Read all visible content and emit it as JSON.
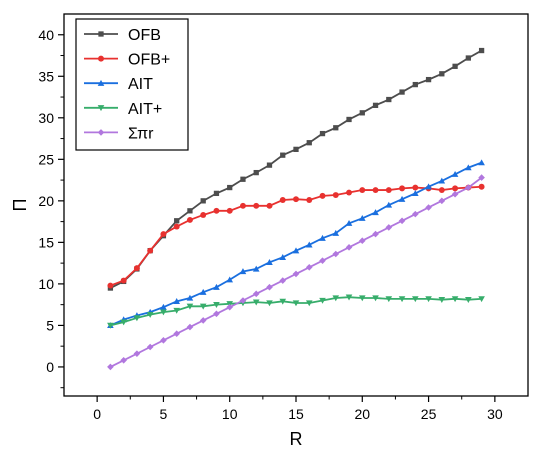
{
  "chart_data": {
    "type": "line",
    "title": "",
    "xlabel": "R",
    "ylabel": "Π",
    "xlim": [
      -2.5,
      32.5
    ],
    "ylim": [
      -3.5,
      42.5
    ],
    "xticks": [
      0,
      5,
      10,
      15,
      20,
      25,
      30
    ],
    "yticks": [
      0,
      5,
      10,
      15,
      20,
      25,
      30,
      35,
      40
    ],
    "grid": false,
    "legend_position": "top-left",
    "x": [
      1,
      2,
      3,
      4,
      5,
      6,
      7,
      8,
      9,
      10,
      11,
      12,
      13,
      14,
      15,
      16,
      17,
      18,
      19,
      20,
      21,
      22,
      23,
      24,
      25,
      26,
      27,
      28,
      29
    ],
    "series": [
      {
        "name": "OFB",
        "color": "#4d4d4d",
        "marker": "square",
        "values": [
          9.5,
          10.3,
          11.8,
          14.0,
          15.8,
          17.6,
          18.8,
          20.0,
          20.9,
          21.6,
          22.6,
          23.4,
          24.3,
          25.5,
          26.2,
          27.0,
          28.1,
          28.8,
          29.8,
          30.6,
          31.5,
          32.2,
          33.1,
          34.0,
          34.6,
          35.3,
          36.2,
          37.2,
          38.1
        ]
      },
      {
        "name": "OFB+",
        "color": "#e8312f",
        "marker": "circle",
        "values": [
          9.8,
          10.4,
          11.9,
          14.0,
          16.0,
          16.9,
          17.7,
          18.3,
          18.8,
          18.8,
          19.4,
          19.4,
          19.4,
          20.1,
          20.2,
          20.1,
          20.6,
          20.7,
          21.0,
          21.3,
          21.3,
          21.3,
          21.5,
          21.6,
          21.5,
          21.3,
          21.5,
          21.6,
          21.7
        ]
      },
      {
        "name": "AIT",
        "color": "#1a6fdf",
        "marker": "triangle-up",
        "values": [
          5.0,
          5.7,
          6.2,
          6.6,
          7.2,
          7.9,
          8.3,
          9.0,
          9.6,
          10.5,
          11.5,
          11.8,
          12.6,
          13.2,
          14.0,
          14.7,
          15.5,
          16.1,
          17.3,
          17.9,
          18.6,
          19.5,
          20.2,
          20.9,
          21.7,
          22.4,
          23.2,
          24.0,
          24.6
        ]
      },
      {
        "name": "AIT+",
        "color": "#37ad6b",
        "marker": "triangle-down",
        "values": [
          5.0,
          5.4,
          5.9,
          6.3,
          6.6,
          6.8,
          7.3,
          7.3,
          7.5,
          7.6,
          7.7,
          7.8,
          7.7,
          7.9,
          7.7,
          7.7,
          8.0,
          8.3,
          8.4,
          8.3,
          8.3,
          8.2,
          8.2,
          8.2,
          8.2,
          8.1,
          8.2,
          8.1,
          8.2
        ]
      },
      {
        "name": "Σπr",
        "color": "#b177de",
        "marker": "diamond",
        "values": [
          0.0,
          0.8,
          1.6,
          2.4,
          3.2,
          4.0,
          4.8,
          5.6,
          6.4,
          7.2,
          8.0,
          8.8,
          9.6,
          10.4,
          11.2,
          12.0,
          12.8,
          13.6,
          14.4,
          15.2,
          16.0,
          16.8,
          17.6,
          18.4,
          19.2,
          20.0,
          20.8,
          21.6,
          22.8
        ]
      }
    ]
  }
}
